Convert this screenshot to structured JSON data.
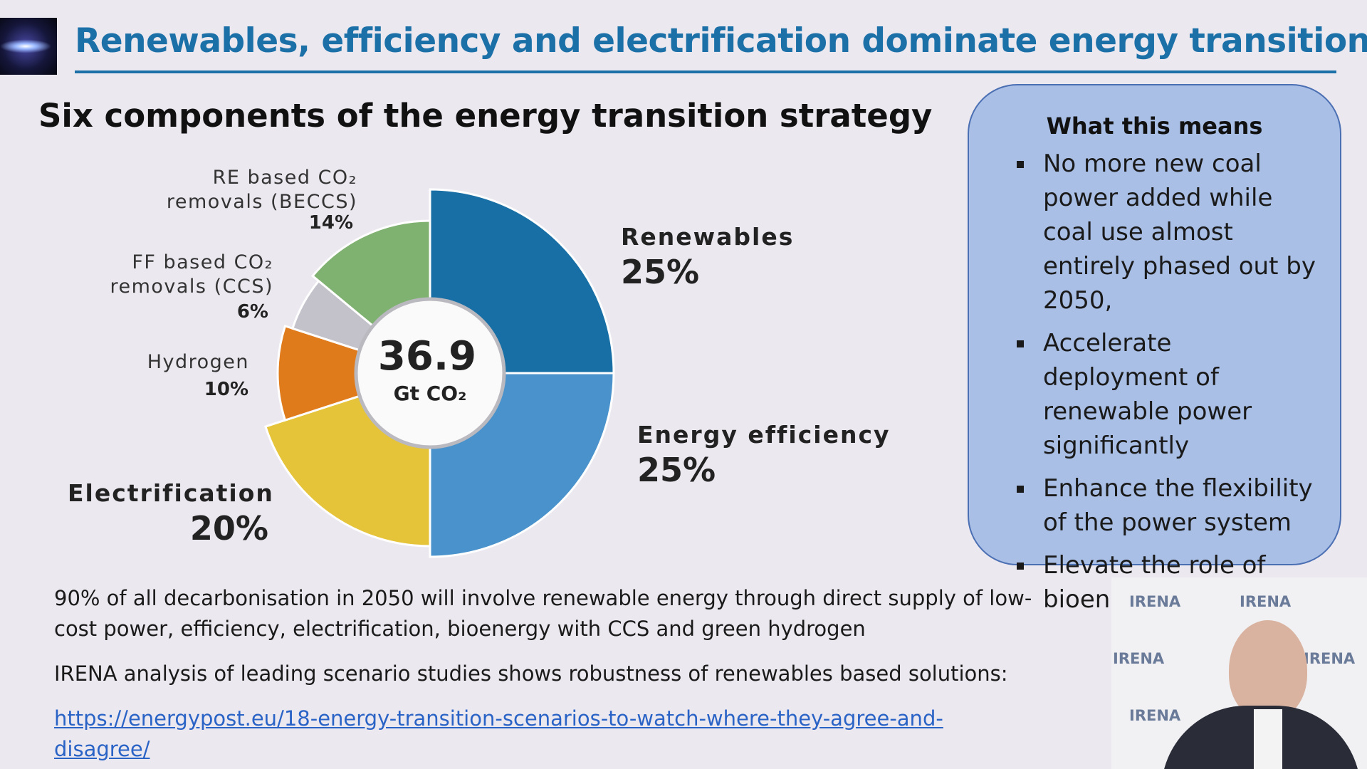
{
  "header": {
    "title": "Renewables, efficiency and electrification dominate energy transition"
  },
  "chart_data": {
    "type": "pie",
    "title": "Six components of the energy transition strategy",
    "center_value": 36.9,
    "center_unit": "Gt CO₂",
    "categories": [
      "Renewables",
      "Energy efficiency",
      "Electrification",
      "Hydrogen",
      "FF based CO₂ removals (CCS)",
      "RE based CO₂ removals (BECCS)"
    ],
    "values": [
      25,
      25,
      20,
      10,
      6,
      14
    ],
    "value_labels": [
      "25%",
      "25%",
      "20%",
      "10%",
      "6%",
      "14%"
    ],
    "colors": [
      "#176fa5",
      "#4a92cb",
      "#e6c43a",
      "#e07b1c",
      "#c3c2ca",
      "#7fb170"
    ]
  },
  "panel": {
    "title": "What this means",
    "bullets": [
      "No more new coal power added while coal use almost entirely phased out by 2050,",
      "Accelerate deployment of renewable power significantly",
      "Enhance the flexibility of the power system",
      "Elevate the role of bioenergy"
    ]
  },
  "notes": {
    "paragraphs": [
      "90% of all decarbonisation in 2050 will involve renewable energy through direct supply of low-cost power, efficiency, electrification, bioenergy with CCS and green hydrogen",
      "IRENA analysis of leading scenario studies shows robustness of renewables based solutions:"
    ],
    "link": "https://energypost.eu/18-energy-transition-scenarios-to-watch-where-they-agree-and-disagree/"
  },
  "video": {
    "watermark": "IRENA"
  }
}
